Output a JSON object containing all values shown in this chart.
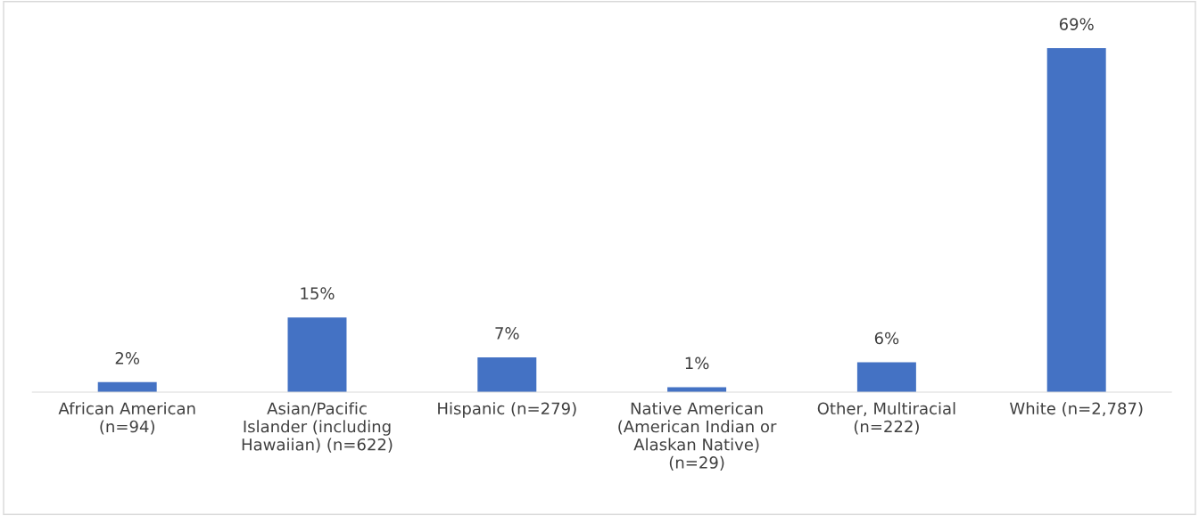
{
  "chart_data": {
    "type": "bar",
    "categories": [
      "African American (n=94)",
      "Asian/Pacific Islander (including Hawaiian) (n=622)",
      "Hispanic (n=279)",
      "Native American (American Indian or Alaskan Native) (n=29)",
      "Other, Multiracial (n=222)",
      "White (n=2,787)"
    ],
    "values": [
      2,
      15,
      7,
      1,
      6,
      69
    ],
    "value_labels": [
      "2%",
      "15%",
      "7%",
      "1%",
      "6%",
      "69%"
    ],
    "color": "#4472c4",
    "grid": false,
    "legend": false
  }
}
